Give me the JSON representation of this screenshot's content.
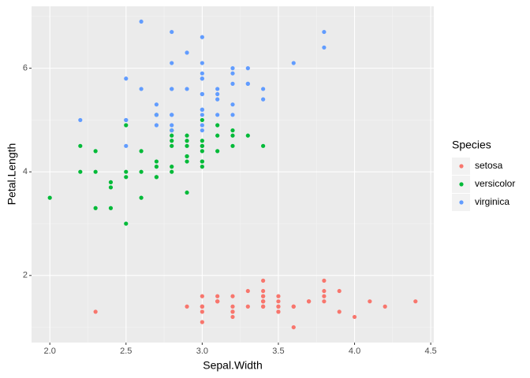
{
  "chart_data": {
    "type": "scatter",
    "x_label": "Sepal.Width",
    "y_label": "Petal.Length",
    "legend_title": "Species",
    "legend_position": "right",
    "grid": true,
    "xlim": [
      1.88,
      4.52
    ],
    "ylim": [
      0.705,
      7.195
    ],
    "xticks": [
      {
        "value": 2.0,
        "label": "2.0"
      },
      2.5,
      {
        "value": 3.0,
        "label": "3.0"
      },
      3.5,
      {
        "value": 4.0,
        "label": "4.0"
      },
      4.5
    ],
    "yticks": [
      2,
      4,
      6
    ],
    "series": [
      {
        "name": "setosa",
        "color": "#f8766d",
        "x": [
          3.5,
          3.0,
          3.2,
          3.1,
          3.6,
          3.9,
          3.4,
          3.4,
          2.9,
          3.1,
          3.7,
          3.4,
          3.0,
          3.0,
          4.0,
          4.4,
          3.9,
          3.5,
          3.8,
          3.8,
          3.4,
          3.7,
          3.6,
          3.3,
          3.4,
          3.0,
          3.4,
          3.5,
          3.4,
          3.2,
          3.1,
          3.4,
          4.1,
          4.2,
          3.1,
          3.2,
          3.5,
          3.6,
          3.0,
          3.4,
          3.5,
          2.3,
          3.2,
          3.5,
          3.8,
          3.0,
          3.8,
          3.2,
          3.7,
          3.3
        ],
        "y": [
          1.4,
          1.4,
          1.3,
          1.5,
          1.4,
          1.7,
          1.4,
          1.5,
          1.4,
          1.5,
          1.5,
          1.6,
          1.4,
          1.1,
          1.2,
          1.5,
          1.3,
          1.4,
          1.7,
          1.5,
          1.7,
          1.5,
          1.0,
          1.7,
          1.9,
          1.6,
          1.6,
          1.5,
          1.4,
          1.6,
          1.6,
          1.5,
          1.5,
          1.4,
          1.5,
          1.2,
          1.3,
          1.4,
          1.3,
          1.5,
          1.3,
          1.3,
          1.3,
          1.6,
          1.9,
          1.4,
          1.6,
          1.4,
          1.5,
          1.4
        ]
      },
      {
        "name": "versicolor",
        "color": "#00ba38",
        "x": [
          3.2,
          3.2,
          3.1,
          2.3,
          2.8,
          2.8,
          3.3,
          2.4,
          2.9,
          2.7,
          2.0,
          3.0,
          2.2,
          2.9,
          2.9,
          3.1,
          3.0,
          2.7,
          2.2,
          2.5,
          3.2,
          2.8,
          2.5,
          2.8,
          2.9,
          3.0,
          2.8,
          3.0,
          2.9,
          2.6,
          2.4,
          2.4,
          2.7,
          2.7,
          3.0,
          3.4,
          3.1,
          2.3,
          3.0,
          2.5,
          2.6,
          3.0,
          2.6,
          2.3,
          2.7,
          3.0,
          2.9,
          2.9,
          2.5,
          2.8
        ],
        "y": [
          4.7,
          4.5,
          4.9,
          4.0,
          4.6,
          4.5,
          4.7,
          3.3,
          4.6,
          3.9,
          3.5,
          4.2,
          4.0,
          4.7,
          3.6,
          4.4,
          4.5,
          4.1,
          4.5,
          3.9,
          4.8,
          4.0,
          4.9,
          4.7,
          4.3,
          4.4,
          4.8,
          5.0,
          4.5,
          3.5,
          3.8,
          3.7,
          3.9,
          5.1,
          4.5,
          4.5,
          4.7,
          4.4,
          4.1,
          4.0,
          4.4,
          4.6,
          4.0,
          3.3,
          4.2,
          4.2,
          4.2,
          4.3,
          3.0,
          4.1
        ]
      },
      {
        "name": "virginica",
        "color": "#619cff",
        "x": [
          3.3,
          2.7,
          3.0,
          2.9,
          3.0,
          3.0,
          2.5,
          2.9,
          2.5,
          3.6,
          3.2,
          2.7,
          3.0,
          2.5,
          2.8,
          3.2,
          3.0,
          3.8,
          2.6,
          2.2,
          3.2,
          2.8,
          2.8,
          2.7,
          3.3,
          3.2,
          2.8,
          3.0,
          2.8,
          3.0,
          2.8,
          3.8,
          2.8,
          2.8,
          2.6,
          3.0,
          3.4,
          3.1,
          3.0,
          3.1,
          3.1,
          3.1,
          2.7,
          3.2,
          3.3,
          3.0,
          2.5,
          3.0,
          3.4,
          3.0
        ],
        "y": [
          6.0,
          5.1,
          5.9,
          5.6,
          5.8,
          6.6,
          4.5,
          6.3,
          5.8,
          6.1,
          5.1,
          5.3,
          5.5,
          5.0,
          5.1,
          5.3,
          5.5,
          6.7,
          6.9,
          5.0,
          5.7,
          4.9,
          6.7,
          4.9,
          5.7,
          6.0,
          4.8,
          4.9,
          5.6,
          5.8,
          6.1,
          6.4,
          5.6,
          5.1,
          5.6,
          6.1,
          5.6,
          5.5,
          4.8,
          5.4,
          5.6,
          5.1,
          5.1,
          5.9,
          5.7,
          5.2,
          5.0,
          5.2,
          5.4,
          5.1
        ]
      }
    ]
  }
}
